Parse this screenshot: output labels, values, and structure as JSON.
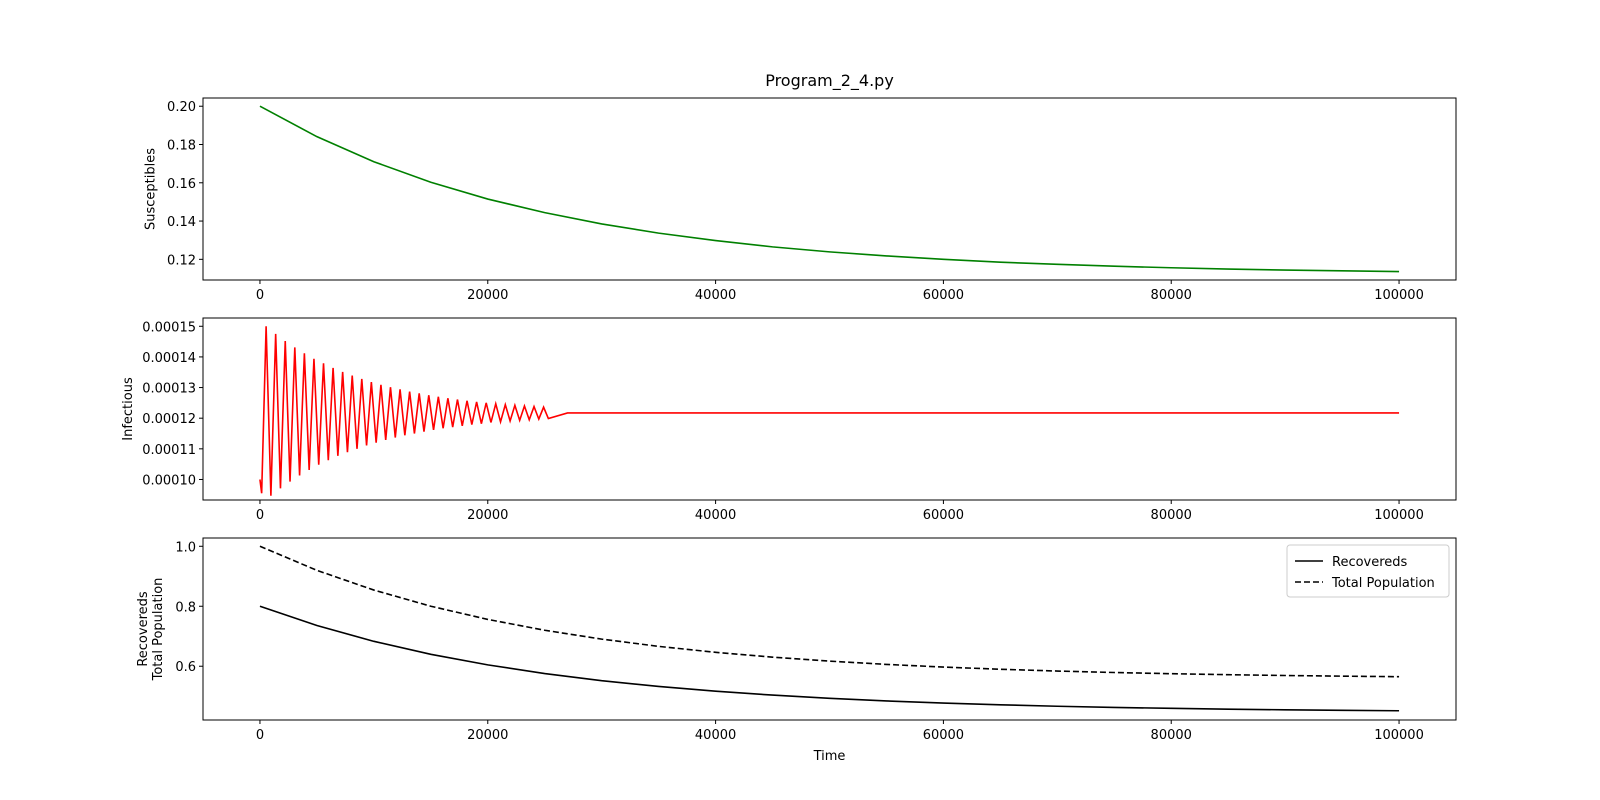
{
  "chart_data": [
    {
      "type": "line",
      "title": "Program_2_4.py",
      "ylabel": "Susceptibles",
      "color": "#008000",
      "x": [
        0,
        5000,
        10000,
        15000,
        20000,
        25000,
        30000,
        35000,
        40000,
        45000,
        50000,
        55000,
        60000,
        65000,
        70000,
        75000,
        80000,
        85000,
        90000,
        95000,
        100000
      ],
      "values": [
        0.2,
        0.1841,
        0.171,
        0.1603,
        0.1515,
        0.1444,
        0.1385,
        0.1337,
        0.1298,
        0.1265,
        0.1239,
        0.1218,
        0.12,
        0.1185,
        0.1174,
        0.1164,
        0.1156,
        0.1149,
        0.1144,
        0.114,
        0.1136
      ],
      "xlim": [
        -5000,
        105000
      ],
      "xticks": [
        0,
        20000,
        40000,
        60000,
        80000,
        100000
      ],
      "ylim": [
        0.1092,
        0.2043
      ],
      "yticks": [
        0.12,
        0.14,
        0.16,
        0.18,
        {
          "value": 0.2,
          "label": "0.20"
        }
      ]
    },
    {
      "type": "line",
      "ylabel": "Infectious",
      "color": "#ff0000",
      "x": [
        0,
        150,
        540,
        960,
        1380,
        1800,
        2220,
        2640,
        3060,
        3480,
        3900,
        4320,
        4740,
        5160,
        5580,
        6000,
        6420,
        6840,
        7260,
        7680,
        8100,
        8520,
        8940,
        9360,
        9780,
        10200,
        10620,
        11040,
        11460,
        11880,
        12300,
        12720,
        13140,
        13560,
        13980,
        14400,
        14820,
        15240,
        15660,
        16080,
        16500,
        16920,
        17340,
        17760,
        18180,
        18600,
        19020,
        19440,
        19860,
        20280,
        20700,
        21120,
        21540,
        21960,
        22380,
        22800,
        23220,
        23640,
        24060,
        24480,
        24900,
        25320,
        27000,
        30000,
        40000,
        50000,
        60000,
        70000,
        80000,
        90000,
        100000
      ],
      "values": [
        0.0001,
        9.55e-05,
        0.00015,
        9.47e-05,
        0.0001475,
        9.71e-05,
        0.0001452,
        9.93e-05,
        0.0001431,
        0.0001013,
        0.0001412,
        0.0001031,
        0.0001394,
        0.0001048,
        0.0001379,
        0.0001063,
        0.0001364,
        0.0001077,
        0.0001351,
        0.0001089,
        0.0001339,
        0.00011,
        0.0001328,
        0.0001111,
        0.0001318,
        0.000112,
        0.0001309,
        0.0001129,
        0.0001301,
        0.0001137,
        0.0001294,
        0.0001144,
        0.0001287,
        0.000115,
        0.0001281,
        0.0001156,
        0.0001275,
        0.0001162,
        0.000127,
        0.0001167,
        0.0001265,
        0.0001171,
        0.0001261,
        0.0001175,
        0.0001257,
        0.0001179,
        0.0001253,
        0.0001182,
        0.000125,
        0.0001186,
        0.0001247,
        0.0001188,
        0.0001244,
        0.0001191,
        0.0001242,
        0.0001193,
        0.000124,
        0.0001195,
        0.0001238,
        0.0001197,
        0.0001236,
        0.0001199,
        0.0001217,
        0.0001217,
        0.0001217,
        0.0001217,
        0.0001217,
        0.0001217,
        0.0001217,
        0.0001217,
        0.0001217
      ],
      "xlim": [
        -5000,
        105000
      ],
      "xticks": [
        0,
        20000,
        40000,
        60000,
        80000,
        100000
      ],
      "ylim": [
        9.33e-05,
        0.0001527
      ],
      "yticks": [
        {
          "value": 0.0001,
          "label": "0.00010"
        },
        0.00011,
        0.00012,
        0.00013,
        0.00014,
        {
          "value": 0.00015,
          "label": "0.00015"
        }
      ]
    },
    {
      "type": "line",
      "ylabel": [
        "Recovereds",
        "Total Population"
      ],
      "xlabel": "Time",
      "legend": "upper right",
      "x": [
        0,
        5000,
        10000,
        15000,
        20000,
        25000,
        30000,
        35000,
        40000,
        45000,
        50000,
        55000,
        60000,
        65000,
        70000,
        75000,
        80000,
        85000,
        90000,
        95000,
        100000
      ],
      "series": [
        {
          "name": "Recovereds",
          "color": "#000000",
          "linestyle": "solid",
          "values": [
            0.8,
            0.7357,
            0.683,
            0.6398,
            0.6045,
            0.5756,
            0.5519,
            0.5325,
            0.5167,
            0.5037,
            0.493,
            0.4843,
            0.4772,
            0.4714,
            0.4666,
            0.4627,
            0.4595,
            0.4568,
            0.4547,
            0.4529,
            0.4515
          ]
        },
        {
          "name": "Total Population",
          "color": "#000000",
          "linestyle": "dashed",
          "values": [
            1.0,
            0.9197,
            0.854,
            0.8001,
            0.7561,
            0.72,
            0.6904,
            0.6662,
            0.6464,
            0.6302,
            0.617,
            0.6061,
            0.5972,
            0.5899,
            0.5839,
            0.5791,
            0.5751,
            0.5718,
            0.5691,
            0.5669,
            0.5651
          ]
        }
      ],
      "xlim": [
        -5000,
        105000
      ],
      "xticks": [
        0,
        20000,
        40000,
        60000,
        80000,
        100000
      ],
      "ylim": [
        0.4207,
        1.0276
      ],
      "yticks": [
        0.6,
        0.8,
        {
          "value": 1.0,
          "label": "1.0"
        }
      ]
    }
  ]
}
